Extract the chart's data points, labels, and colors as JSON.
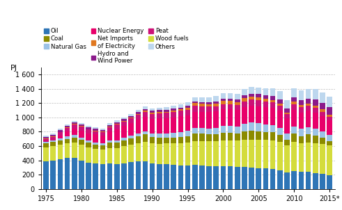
{
  "years": [
    1975,
    1976,
    1977,
    1978,
    1979,
    1980,
    1981,
    1982,
    1983,
    1984,
    1985,
    1986,
    1987,
    1988,
    1989,
    1990,
    1991,
    1992,
    1993,
    1994,
    1995,
    1996,
    1997,
    1998,
    1999,
    2000,
    2001,
    2002,
    2003,
    2004,
    2005,
    2006,
    2007,
    2008,
    2009,
    2010,
    2011,
    2012,
    2013,
    2014,
    2015
  ],
  "stack_order": [
    "Oil",
    "Wood fuels",
    "Coal",
    "Natural Gas",
    "Nuclear Energy",
    "Peat",
    "Net Imports of Electricity",
    "Hydro and Wind Power",
    "Others"
  ],
  "series": {
    "Oil": [
      390,
      400,
      415,
      430,
      435,
      400,
      370,
      355,
      345,
      355,
      345,
      360,
      375,
      385,
      385,
      360,
      345,
      345,
      335,
      330,
      325,
      335,
      330,
      320,
      315,
      320,
      315,
      305,
      305,
      295,
      290,
      285,
      280,
      260,
      235,
      255,
      240,
      240,
      225,
      210,
      195
    ],
    "Wood fuels": [
      190,
      195,
      200,
      205,
      215,
      215,
      210,
      205,
      205,
      220,
      230,
      235,
      245,
      255,
      270,
      275,
      285,
      290,
      300,
      310,
      320,
      335,
      340,
      345,
      355,
      360,
      365,
      370,
      380,
      390,
      395,
      400,
      400,
      395,
      375,
      405,
      400,
      410,
      415,
      415,
      410
    ],
    "Coal": [
      55,
      60,
      65,
      65,
      70,
      70,
      65,
      60,
      60,
      70,
      75,
      85,
      90,
      95,
      105,
      90,
      90,
      85,
      85,
      90,
      95,
      105,
      100,
      95,
      95,
      105,
      105,
      100,
      120,
      125,
      120,
      110,
      110,
      100,
      75,
      110,
      100,
      110,
      110,
      90,
      65
    ],
    "Natural Gas": [
      25,
      27,
      30,
      32,
      35,
      32,
      28,
      25,
      25,
      28,
      32,
      35,
      37,
      40,
      45,
      50,
      55,
      57,
      60,
      65,
      70,
      80,
      80,
      85,
      90,
      95,
      95,
      100,
      110,
      115,
      115,
      110,
      105,
      100,
      88,
      100,
      100,
      100,
      95,
      88,
      83
    ],
    "Nuclear Energy": [
      0,
      0,
      35,
      70,
      90,
      100,
      105,
      115,
      115,
      135,
      155,
      165,
      175,
      190,
      200,
      205,
      210,
      210,
      215,
      220,
      215,
      225,
      225,
      230,
      230,
      235,
      230,
      225,
      230,
      240,
      235,
      240,
      240,
      235,
      215,
      235,
      230,
      235,
      225,
      215,
      205
    ],
    "Peat": [
      35,
      40,
      45,
      50,
      55,
      55,
      50,
      45,
      40,
      50,
      60,
      60,
      65,
      70,
      75,
      70,
      75,
      75,
      80,
      75,
      80,
      85,
      80,
      75,
      70,
      70,
      75,
      70,
      80,
      85,
      85,
      80,
      75,
      70,
      55,
      75,
      70,
      65,
      65,
      60,
      50
    ],
    "Net Imports of Electricity": [
      10,
      10,
      8,
      8,
      8,
      8,
      8,
      12,
      12,
      12,
      12,
      12,
      12,
      15,
      15,
      18,
      18,
      18,
      22,
      22,
      28,
      32,
      32,
      32,
      38,
      42,
      42,
      42,
      42,
      42,
      38,
      32,
      32,
      28,
      22,
      38,
      32,
      28,
      32,
      32,
      32
    ],
    "Hydro and Wind Power": [
      22,
      22,
      22,
      22,
      22,
      22,
      22,
      22,
      22,
      22,
      22,
      22,
      22,
      22,
      22,
      22,
      22,
      22,
      25,
      25,
      28,
      28,
      28,
      28,
      32,
      32,
      35,
      35,
      40,
      40,
      45,
      50,
      55,
      60,
      60,
      65,
      70,
      75,
      85,
      95,
      105
    ],
    "Others": [
      22,
      22,
      22,
      22,
      22,
      22,
      22,
      22,
      22,
      25,
      25,
      25,
      28,
      28,
      32,
      35,
      38,
      40,
      43,
      45,
      50,
      55,
      60,
      65,
      70,
      75,
      80,
      85,
      90,
      95,
      95,
      100,
      105,
      115,
      115,
      125,
      130,
      135,
      140,
      140,
      145
    ]
  },
  "colors": {
    "Oil": "#2E75B6",
    "Wood fuels": "#D4DC3C",
    "Coal": "#8B8B00",
    "Natural Gas": "#9DC3E6",
    "Nuclear Energy": "#E8006A",
    "Peat": "#CC1177",
    "Net Imports of Electricity": "#E07820",
    "Hydro and Wind Power": "#8B1A8B",
    "Others": "#BDD7EE"
  },
  "legend_order": [
    "Oil",
    "Coal",
    "Natural Gas",
    "Nuclear Energy",
    "Net Imports of Electricity",
    "Hydro and Wind Power",
    "Peat",
    "Wood fuels",
    "Others"
  ],
  "legend_labels": {
    "Oil": "Oil",
    "Coal": "Coal",
    "Natural Gas": "Natural Gas",
    "Nuclear Energy": "Nuclear Energy",
    "Net Imports of Electricity": "Net Imports\nof Electricity",
    "Hydro and Wind Power": "Hydro and\nWind Power",
    "Peat": "Peat",
    "Wood fuels": "Wood fuels",
    "Others": "Others"
  },
  "ylabel": "PJ",
  "ylim": [
    0,
    1700
  ],
  "yticks": [
    0,
    200,
    400,
    600,
    800,
    1000,
    1200,
    1400,
    1600
  ],
  "xtick_labels": [
    "1975",
    "1980",
    "1985",
    "1990",
    "1995",
    "2000",
    "2005",
    "2010",
    "2015*"
  ],
  "xtick_positions": [
    1975,
    1980,
    1985,
    1990,
    1995,
    2000,
    2005,
    2010,
    2015
  ],
  "background_color": "#FFFFFF",
  "grid_color": "#BEBEBE"
}
